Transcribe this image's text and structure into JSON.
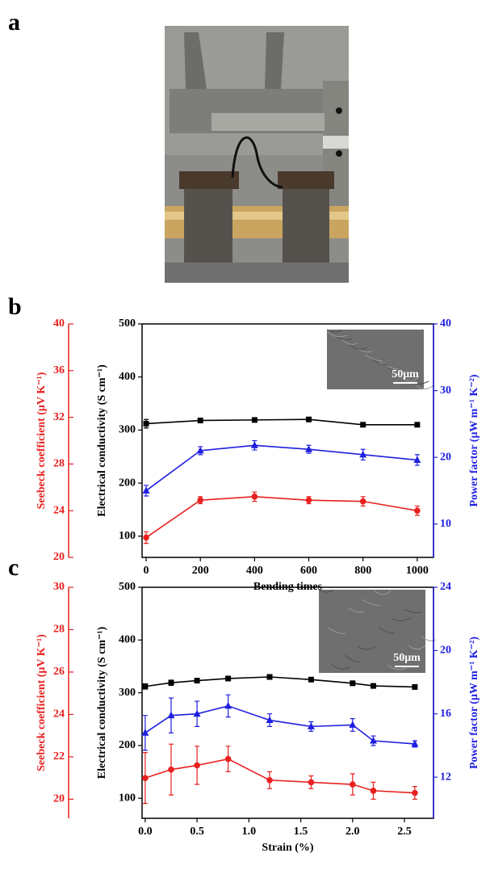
{
  "panels": {
    "a": "a",
    "b": "b",
    "c": "c"
  },
  "chart_data": [
    {
      "type": "line",
      "x_label": "Bending times",
      "y_label": "Electrical conductivity  (S cm⁻¹)",
      "y2_label": "Power factor  (μW m⁻¹ K⁻²)",
      "y3_label": "Seebeck coefficient  (μV K⁻¹)",
      "inset_scale": "50μm",
      "x": [
        0,
        200,
        400,
        600,
        800,
        1000
      ],
      "xlim": [
        -15,
        1060
      ],
      "xticks": [
        0,
        200,
        400,
        600,
        800,
        1000
      ],
      "ylim": [
        60,
        500
      ],
      "yticks": [
        100,
        200,
        300,
        400,
        500
      ],
      "y2lim": [
        5,
        40
      ],
      "y2ticks": [
        10,
        20,
        30,
        40
      ],
      "y3lim": [
        20,
        40
      ],
      "y3ticks": [
        20,
        24,
        28,
        32,
        36,
        40
      ],
      "series": [
        {
          "color": "#000000",
          "marker": "square",
          "axis": "y",
          "values": [
            312,
            318,
            319,
            320,
            310,
            310
          ],
          "errors": [
            8,
            3,
            2,
            3,
            2,
            2
          ]
        },
        {
          "color": "#1f1fe0",
          "marker": "triangle",
          "axis": "y2",
          "values": [
            15,
            21,
            21.8,
            21.2,
            20.4,
            19.6
          ],
          "errors": [
            0.8,
            0.6,
            0.7,
            0.6,
            0.8,
            0.8
          ]
        },
        {
          "color": "#e8201f",
          "marker": "circle",
          "axis": "y3",
          "values": [
            21.7,
            24.9,
            25.2,
            24.9,
            24.8,
            24.0
          ],
          "errors": [
            0.5,
            0.3,
            0.4,
            0.3,
            0.4,
            0.4
          ]
        }
      ]
    },
    {
      "type": "line",
      "x_label": "Strain (%)",
      "y_label": "Electrical conductivity  (S cm⁻¹)",
      "y2_label": "Power factor  (μW m⁻¹ K⁻²)",
      "y3_label": "Seebeck coefficient  (μV K⁻¹)",
      "inset_scale": "50μm",
      "x": [
        0,
        0.25,
        0.5,
        0.8,
        1.2,
        1.6,
        2.0,
        2.2,
        2.6
      ],
      "xlim": [
        -0.03,
        2.78
      ],
      "xticks": [
        {
          "value": 0,
          "label": "0.0"
        },
        0.5,
        {
          "value": 1,
          "label": "1.0"
        },
        1.5,
        {
          "value": 2,
          "label": "2.0"
        },
        2.5
      ],
      "ylim": [
        62,
        500
      ],
      "yticks": [
        100,
        200,
        300,
        400,
        500
      ],
      "y2lim": [
        9.4,
        24
      ],
      "y2ticks": [
        12,
        16,
        20,
        24
      ],
      "y3lim": [
        19.1,
        30
      ],
      "y3ticks": [
        20,
        22,
        24,
        26,
        28,
        30
      ],
      "series": [
        {
          "color": "#000000",
          "marker": "square",
          "axis": "y",
          "values": [
            312,
            319,
            323,
            327,
            330,
            325,
            318,
            313,
            311
          ],
          "errors": [
            5,
            5,
            3,
            3,
            2,
            2,
            2,
            2,
            2
          ]
        },
        {
          "color": "#1f1fe0",
          "marker": "triangle",
          "axis": "y2",
          "values": [
            14.8,
            15.9,
            16.0,
            16.5,
            15.6,
            15.2,
            15.3,
            14.3,
            14.1
          ],
          "errors": [
            1.1,
            1.1,
            0.8,
            0.7,
            0.4,
            0.3,
            0.4,
            0.3,
            0.2
          ]
        },
        {
          "color": "#e8201f",
          "marker": "circle",
          "axis": "y3",
          "values": [
            21.0,
            21.4,
            21.6,
            21.9,
            20.9,
            20.8,
            20.7,
            20.4,
            20.3
          ],
          "errors": [
            1.2,
            1.2,
            0.9,
            0.6,
            0.4,
            0.3,
            0.5,
            0.4,
            0.3
          ]
        }
      ]
    }
  ]
}
